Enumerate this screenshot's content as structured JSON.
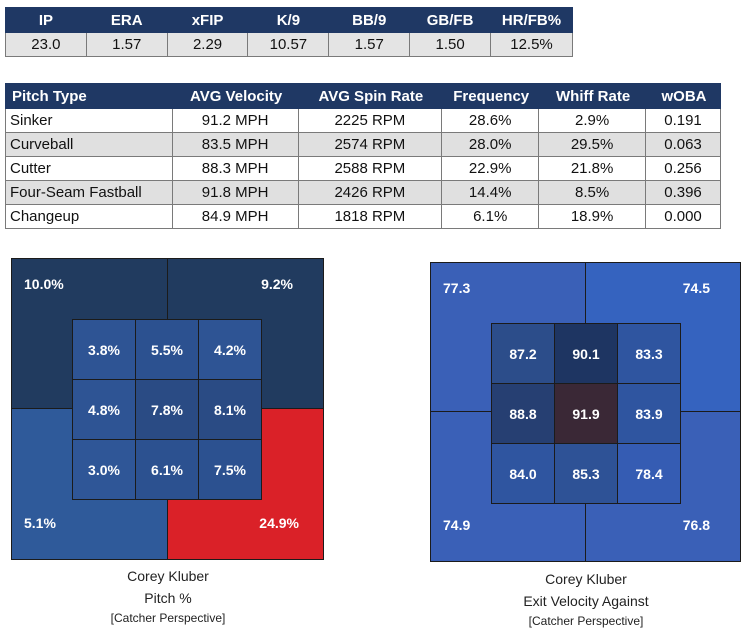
{
  "stats": {
    "headers": [
      "IP",
      "ERA",
      "xFIP",
      "K/9",
      "BB/9",
      "GB/FB",
      "HR/FB%"
    ],
    "values": [
      "23.0",
      "1.57",
      "2.29",
      "10.57",
      "1.57",
      "1.50",
      "12.5%"
    ]
  },
  "pitches": {
    "headers": [
      "Pitch Type",
      "AVG Velocity",
      "AVG Spin Rate",
      "Frequency",
      "Whiff Rate",
      "wOBA"
    ],
    "rows": [
      [
        "Sinker",
        "91.2 MPH",
        "2225 RPM",
        "28.6%",
        "2.9%",
        "0.191"
      ],
      [
        "Curveball",
        "83.5 MPH",
        "2574 RPM",
        "28.0%",
        "29.5%",
        "0.063"
      ],
      [
        "Cutter",
        "88.3 MPH",
        "2588 RPM",
        "22.9%",
        "21.8%",
        "0.256"
      ],
      [
        "Four-Seam Fastball",
        "91.8 MPH",
        "2426 RPM",
        "14.4%",
        "8.5%",
        "0.396"
      ],
      [
        "Changeup",
        "84.9 MPH",
        "1818 RPM",
        "6.1%",
        "18.9%",
        "0.000"
      ]
    ]
  },
  "zone_left": {
    "corners": {
      "tl": "10.0%",
      "tr": "9.2%",
      "bl": "5.1%",
      "br": "24.9%"
    },
    "corner_colors": {
      "tl": "#213b5f",
      "tr": "#213b5f",
      "bl": "#2f5a9a",
      "br": "#da2128"
    },
    "inner": [
      [
        "3.8%",
        "5.5%",
        "4.2%"
      ],
      [
        "4.8%",
        "7.8%",
        "8.1%"
      ],
      [
        "3.0%",
        "6.1%",
        "7.5%"
      ]
    ],
    "inner_colors": [
      [
        "#2e5494",
        "#2c5190",
        "#2e5494"
      ],
      [
        "#2e5494",
        "#2a4b84",
        "#2a4b84"
      ],
      [
        "#2f5697",
        "#2c5190",
        "#2c5190"
      ]
    ],
    "caption_name": "Corey Kluber",
    "caption_metric": "Pitch %",
    "caption_note": "[Catcher Perspective]"
  },
  "zone_right": {
    "corners": {
      "tl": "77.3",
      "tr": "74.5",
      "bl": "74.9",
      "br": "76.8"
    },
    "corner_colors": {
      "tl": "#3a60b7",
      "tr": "#3563bf",
      "bl": "#3a60b7",
      "br": "#3a60b7"
    },
    "inner": [
      [
        "87.2",
        "90.1",
        "83.3"
      ],
      [
        "88.8",
        "91.9",
        "83.9"
      ],
      [
        "84.0",
        "85.3",
        "78.4"
      ]
    ],
    "inner_colors": [
      [
        "#2c4d8a",
        "#1e3562",
        "#2f55a0"
      ],
      [
        "#263f72",
        "#3a2836",
        "#2f55a0"
      ],
      [
        "#2f55a0",
        "#2e5296",
        "#355cb3"
      ]
    ],
    "caption_name": "Corey Kluber",
    "caption_metric": "Exit Velocity Against",
    "caption_note": "[Catcher Perspective]"
  }
}
